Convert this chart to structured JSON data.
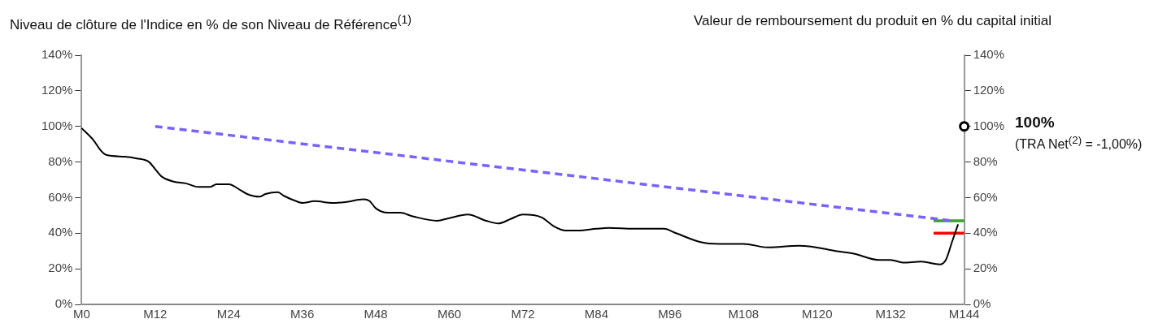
{
  "chart_data": {
    "type": "line",
    "ylabel": "Niveau de clôture de l'Indice en % de son Niveau de Référence$^{(1)}$",
    "y2label": "Valeur de remboursement du produit en % du capital initial",
    "categories": [
      "M0",
      null,
      null,
      null,
      null,
      null,
      null,
      null,
      null,
      null,
      null,
      null,
      "M12",
      null,
      null,
      null,
      null,
      null,
      null,
      null,
      null,
      null,
      null,
      null,
      "M24",
      null,
      null,
      null,
      null,
      null,
      null,
      null,
      null,
      null,
      null,
      null,
      "M36",
      null,
      null,
      null,
      null,
      null,
      null,
      null,
      null,
      null,
      null,
      null,
      "M48",
      null,
      null,
      null,
      null,
      null,
      null,
      null,
      null,
      null,
      null,
      null,
      "M60",
      null,
      null,
      null,
      null,
      null,
      null,
      null,
      null,
      null,
      null,
      null,
      "M72",
      null,
      null,
      null,
      null,
      null,
      null,
      null,
      null,
      null,
      null,
      null,
      "M84",
      null,
      null,
      null,
      null,
      null,
      null,
      null,
      null,
      null,
      null,
      null,
      "M96",
      null,
      null,
      null,
      null,
      null,
      null,
      null,
      null,
      null,
      null,
      null,
      "M108",
      null,
      null,
      null,
      null,
      null,
      null,
      null,
      null,
      null,
      null,
      null,
      "M120",
      null,
      null,
      null,
      null,
      null,
      null,
      null,
      null,
      null,
      null,
      null,
      "M132",
      null,
      null,
      null,
      null,
      null,
      null,
      null,
      null,
      null,
      null,
      null,
      "M144"
    ],
    "ylim": [
      0,
      140
    ],
    "yticks": [
      {
        "value": 0,
        "label": "0%"
      },
      {
        "value": 20,
        "label": "20%"
      },
      {
        "value": 40,
        "label": "40%"
      },
      {
        "value": 60,
        "label": "60%"
      },
      {
        "value": 80,
        "label": "80%"
      },
      {
        "value": 100,
        "label": "100%"
      },
      {
        "value": 120,
        "label": "120%"
      },
      {
        "value": 140,
        "label": "140%"
      }
    ],
    "y2lim": [
      0,
      140
    ],
    "y2ticks": [
      {
        "value": 0,
        "label": "0%"
      },
      {
        "value": 20,
        "label": "20%"
      },
      {
        "value": 40,
        "label": "40%"
      },
      {
        "value": 60,
        "label": "60%"
      },
      {
        "value": 80,
        "label": "80%"
      },
      {
        "value": 100,
        "label": "100%"
      },
      {
        "value": 120,
        "label": "120%"
      },
      {
        "value": 140,
        "label": "140%"
      }
    ],
    "grid": false,
    "legend": false,
    "series": [
      {
        "color": "#000000",
        "marker": "none",
        "line_style": "solid",
        "values": [
          99,
          null,
          92,
          87,
          84,
          null,
          null,
          83,
          null,
          82,
          null,
          80,
          76,
          72,
          null,
          69,
          null,
          68,
          null,
          66,
          null,
          66,
          67.5,
          null,
          67.5,
          null,
          64,
          62,
          null,
          60.5,
          62,
          null,
          63,
          61,
          null,
          58,
          57,
          null,
          58,
          null,
          null,
          57,
          null,
          57.5,
          null,
          null,
          59,
          58,
          54,
          null,
          51.5,
          null,
          51.5,
          null,
          49.5,
          null,
          null,
          null,
          47,
          null,
          48.5,
          null,
          null,
          50.5,
          null,
          null,
          47,
          null,
          45.5,
          null,
          48,
          null,
          50.5,
          null,
          null,
          49,
          null,
          44,
          null,
          41.5,
          null,
          41.5,
          null,
          null,
          42.5,
          null,
          43,
          null,
          null,
          null,
          42.5,
          null,
          null,
          null,
          null,
          42.5,
          null,
          40,
          null,
          null,
          null,
          35,
          null,
          null,
          34,
          null,
          null,
          null,
          34,
          null,
          null,
          null,
          32,
          null,
          null,
          null,
          null,
          33,
          null,
          32.5,
          null,
          null,
          null,
          30,
          null,
          null,
          28.5,
          null,
          null,
          null,
          25,
          null,
          25,
          null,
          23.5,
          null,
          null,
          24,
          null,
          null,
          22.5,
          25,
          35,
          45,
          null
        ]
      },
      {
        "color": "#7b61ff",
        "marker": "none",
        "line_style": "dashed",
        "values": [
          null,
          null,
          null,
          null,
          null,
          null,
          null,
          null,
          null,
          null,
          null,
          null,
          100,
          null,
          null,
          null,
          null,
          null,
          null,
          null,
          null,
          null,
          null,
          null,
          null,
          null,
          null,
          null,
          null,
          null,
          null,
          null,
          null,
          null,
          null,
          null,
          null,
          null,
          null,
          null,
          null,
          null,
          null,
          null,
          null,
          null,
          null,
          null,
          null,
          null,
          null,
          null,
          null,
          null,
          null,
          null,
          null,
          null,
          null,
          null,
          null,
          null,
          null,
          null,
          null,
          null,
          null,
          null,
          null,
          null,
          null,
          null,
          null,
          null,
          null,
          null,
          null,
          null,
          null,
          null,
          null,
          null,
          null,
          null,
          null,
          null,
          null,
          null,
          null,
          null,
          null,
          null,
          null,
          null,
          null,
          null,
          null,
          null,
          null,
          null,
          null,
          null,
          null,
          null,
          null,
          null,
          null,
          null,
          null,
          null,
          null,
          null,
          null,
          null,
          null,
          null,
          null,
          null,
          null,
          null,
          null,
          null,
          null,
          null,
          null,
          null,
          null,
          null,
          null,
          null,
          null,
          null,
          null,
          null,
          null,
          null,
          null,
          null,
          null,
          null,
          null,
          null,
          47,
          null,
          null
        ]
      },
      {
        "color": "#3a9e2a",
        "marker": "none",
        "line_style": "solid",
        "values": [
          null,
          null,
          null,
          null,
          null,
          null,
          null,
          null,
          null,
          null,
          null,
          null,
          null,
          null,
          null,
          null,
          null,
          null,
          null,
          null,
          null,
          null,
          null,
          null,
          null,
          null,
          null,
          null,
          null,
          null,
          null,
          null,
          null,
          null,
          null,
          null,
          null,
          null,
          null,
          null,
          null,
          null,
          null,
          null,
          null,
          null,
          null,
          null,
          null,
          null,
          null,
          null,
          null,
          null,
          null,
          null,
          null,
          null,
          null,
          null,
          null,
          null,
          null,
          null,
          null,
          null,
          null,
          null,
          null,
          null,
          null,
          null,
          null,
          null,
          null,
          null,
          null,
          null,
          null,
          null,
          null,
          null,
          null,
          null,
          null,
          null,
          null,
          null,
          null,
          null,
          null,
          null,
          null,
          null,
          null,
          null,
          null,
          null,
          null,
          null,
          null,
          null,
          null,
          null,
          null,
          null,
          null,
          null,
          null,
          null,
          null,
          null,
          null,
          null,
          null,
          null,
          null,
          null,
          null,
          null,
          null,
          null,
          null,
          null,
          null,
          null,
          null,
          null,
          null,
          null,
          null,
          null,
          null,
          null,
          null,
          null,
          null,
          null,
          null,
          47,
          null,
          null,
          null,
          null,
          47
        ]
      },
      {
        "color": "#ff0000",
        "marker": "none",
        "line_style": "solid",
        "values": [
          null,
          null,
          null,
          null,
          null,
          null,
          null,
          null,
          null,
          null,
          null,
          null,
          null,
          null,
          null,
          null,
          null,
          null,
          null,
          null,
          null,
          null,
          null,
          null,
          null,
          null,
          null,
          null,
          null,
          null,
          null,
          null,
          null,
          null,
          null,
          null,
          null,
          null,
          null,
          null,
          null,
          null,
          null,
          null,
          null,
          null,
          null,
          null,
          null,
          null,
          null,
          null,
          null,
          null,
          null,
          null,
          null,
          null,
          null,
          null,
          null,
          null,
          null,
          null,
          null,
          null,
          null,
          null,
          null,
          null,
          null,
          null,
          null,
          null,
          null,
          null,
          null,
          null,
          null,
          null,
          null,
          null,
          null,
          null,
          null,
          null,
          null,
          null,
          null,
          null,
          null,
          null,
          null,
          null,
          null,
          null,
          null,
          null,
          null,
          null,
          null,
          null,
          null,
          null,
          null,
          null,
          null,
          null,
          null,
          null,
          null,
          null,
          null,
          null,
          null,
          null,
          null,
          null,
          null,
          null,
          null,
          null,
          null,
          null,
          null,
          null,
          null,
          null,
          null,
          null,
          null,
          null,
          null,
          null,
          null,
          null,
          null,
          null,
          null,
          40,
          null,
          null,
          null,
          null,
          40
        ]
      },
      {
        "type": "scatter",
        "color": "#000000",
        "marker": "circle",
        "values": [
          null,
          null,
          null,
          null,
          null,
          null,
          null,
          null,
          null,
          null,
          null,
          null,
          null,
          null,
          null,
          null,
          null,
          null,
          null,
          null,
          null,
          null,
          null,
          null,
          null,
          null,
          null,
          null,
          null,
          null,
          null,
          null,
          null,
          null,
          null,
          null,
          null,
          null,
          null,
          null,
          null,
          null,
          null,
          null,
          null,
          null,
          null,
          null,
          null,
          null,
          null,
          null,
          null,
          null,
          null,
          null,
          null,
          null,
          null,
          null,
          null,
          null,
          null,
          null,
          null,
          null,
          null,
          null,
          null,
          null,
          null,
          null,
          null,
          null,
          null,
          null,
          null,
          null,
          null,
          null,
          null,
          null,
          null,
          null,
          null,
          null,
          null,
          null,
          null,
          null,
          null,
          null,
          null,
          null,
          null,
          null,
          null,
          null,
          null,
          null,
          null,
          null,
          null,
          null,
          null,
          null,
          null,
          null,
          null,
          null,
          null,
          null,
          null,
          null,
          null,
          null,
          null,
          null,
          null,
          null,
          null,
          null,
          null,
          null,
          null,
          null,
          null,
          null,
          null,
          null,
          null,
          null,
          null,
          null,
          null,
          null,
          null,
          null,
          null,
          null,
          null,
          null,
          null,
          null,
          100
        ]
      }
    ],
    "annotations": [
      "100%",
      "(TRA Net$^{(2)}$ = -1,00%)"
    ]
  }
}
